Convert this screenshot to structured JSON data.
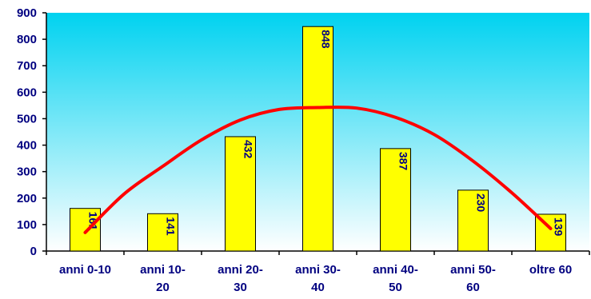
{
  "chart_data": {
    "type": "bar",
    "categories": [
      [
        "anni 0-10"
      ],
      [
        "anni 10-",
        "20"
      ],
      [
        "anni 20-",
        "30"
      ],
      [
        "anni 30-",
        "40"
      ],
      [
        "anni 40-",
        "50"
      ],
      [
        "anni 50-",
        "60"
      ],
      [
        "oltre 60"
      ]
    ],
    "values": [
      161,
      141,
      432,
      848,
      387,
      230,
      139
    ],
    "data_labels": [
      "161",
      "141",
      "432",
      "848",
      "387",
      "230",
      "139"
    ],
    "trend_curve": [
      70,
      215,
      320,
      420,
      495,
      535,
      542,
      540,
      505,
      440,
      340,
      220,
      85
    ],
    "ylim": [
      0,
      900
    ],
    "yticks": [
      0,
      100,
      200,
      300,
      400,
      500,
      600,
      700,
      800,
      900
    ],
    "title": "",
    "xlabel": "",
    "ylabel": "",
    "grid": false,
    "legend": "none",
    "colors": {
      "bar_fill": "#ffff00",
      "bar_stroke": "#000000",
      "curve": "#ff0000",
      "label": "#000080",
      "plot_bg_top": "#00d2f0",
      "plot_bg_bottom": "#ffffff"
    }
  }
}
